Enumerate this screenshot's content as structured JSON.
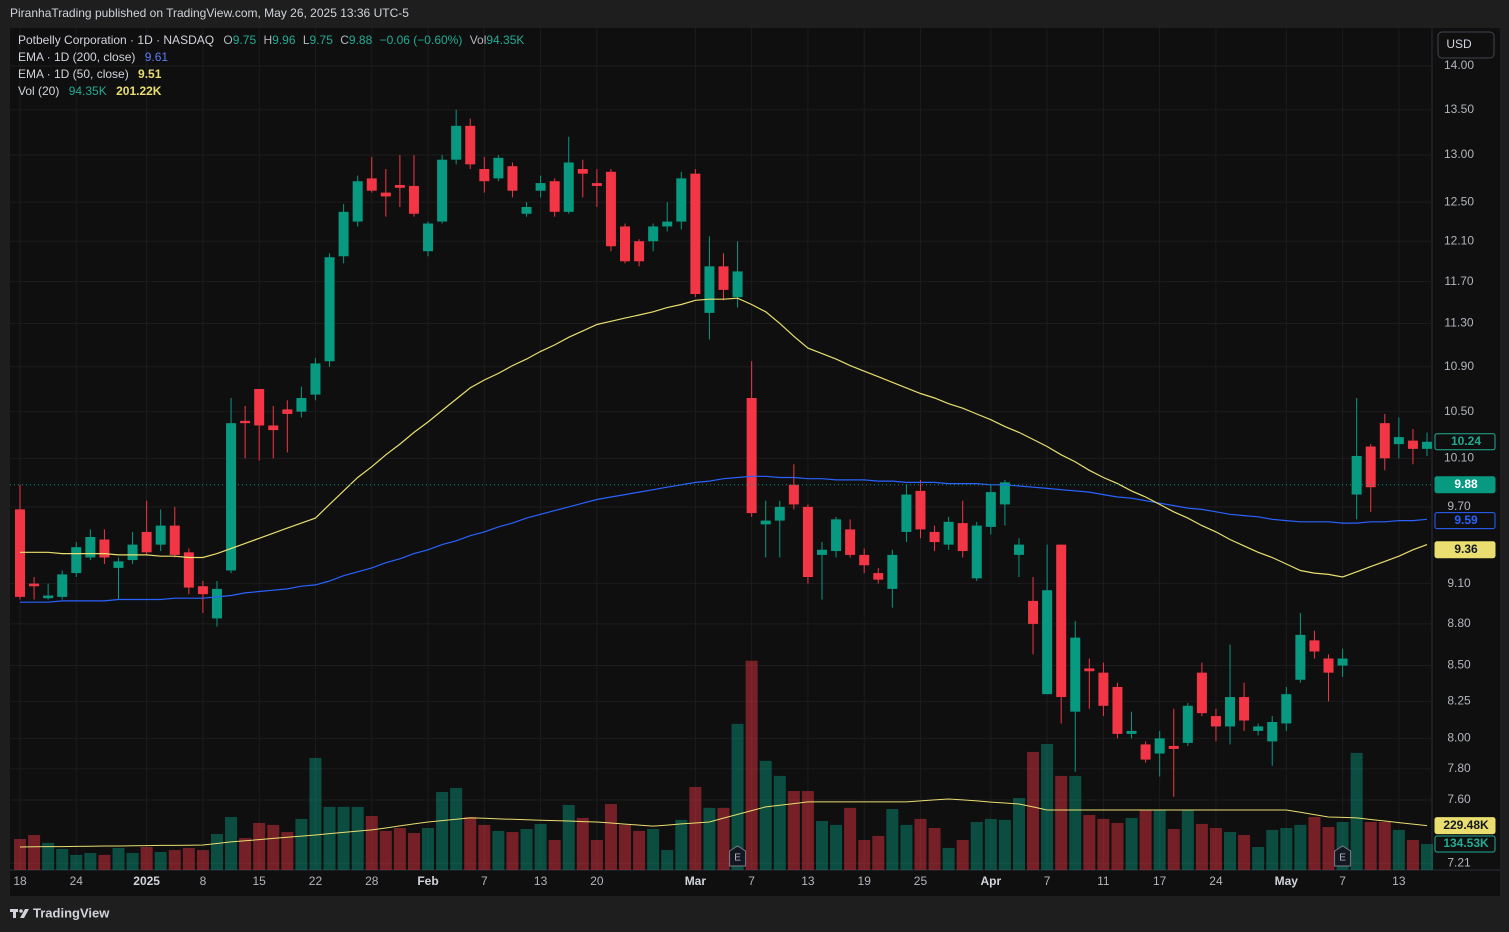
{
  "page": {
    "published": "PiranhaTrading published on TradingView.com, May 26, 2025 13:36 UTC-5",
    "brand": "TradingView",
    "currency": "USD"
  },
  "chart_data": {
    "type": "candlestick",
    "title": "Potbelly Corporation · 1D · NASDAQ",
    "ohlc_legend": [
      {
        "key": "O",
        "value": "9.75"
      },
      {
        "key": "H",
        "value": "9.96"
      },
      {
        "key": "L",
        "value": "9.75"
      },
      {
        "key": "C",
        "value": "9.88"
      }
    ],
    "change": "−0.06 (−0.60%)",
    "vol_key": "Vol",
    "vol_value": "94.35K",
    "log_scale": true,
    "grid": true,
    "up_color": "#089981",
    "down_color": "#f23645",
    "categories": [
      "18",
      null,
      null,
      null,
      "24",
      null,
      null,
      null,
      null,
      "2025",
      null,
      null,
      null,
      "8",
      null,
      null,
      null,
      "15",
      null,
      null,
      null,
      "22",
      null,
      null,
      null,
      "28",
      null,
      null,
      null,
      "Feb",
      null,
      null,
      null,
      "7",
      null,
      null,
      null,
      "13",
      null,
      null,
      null,
      "20",
      null,
      null,
      null,
      null,
      null,
      null,
      "Mar",
      null,
      null,
      null,
      "7",
      null,
      null,
      null,
      "13",
      null,
      null,
      null,
      "19",
      null,
      null,
      null,
      "25",
      null,
      null,
      null,
      null,
      "Apr",
      null,
      null,
      null,
      "7",
      null,
      null,
      null,
      "11",
      null,
      null,
      null,
      "17",
      null,
      null,
      null,
      "24",
      null,
      null,
      null,
      null,
      "May",
      null,
      null,
      null,
      "7",
      null,
      null,
      null,
      "13",
      null,
      null
    ],
    "open": [
      9.68,
      9.1,
      8.99,
      9.0,
      9.18,
      9.3,
      9.44,
      9.22,
      9.28,
      9.5,
      9.4,
      9.55,
      9.34,
      9.08,
      8.84,
      9.2,
      10.42,
      10.7,
      10.38,
      10.52,
      10.5,
      10.65,
      10.95,
      11.95,
      12.3,
      12.75,
      12.6,
      12.68,
      12.67,
      12.0,
      12.3,
      12.95,
      13.32,
      12.85,
      12.75,
      12.88,
      12.38,
      12.62,
      12.72,
      12.4,
      12.85,
      12.7,
      12.82,
      12.25,
      12.1,
      12.1,
      12.25,
      12.3,
      12.8,
      11.4,
      11.85,
      11.55,
      10.62,
      9.56,
      9.59,
      9.88,
      9.7,
      9.32,
      9.35,
      9.52,
      9.32,
      9.18,
      9.06,
      9.5,
      9.83,
      9.5,
      9.4,
      9.57,
      9.14,
      9.54,
      9.72,
      9.32,
      8.97,
      8.3,
      9.4,
      8.18,
      8.48,
      8.45,
      8.35,
      8.03,
      7.96,
      7.9,
      7.95,
      7.97,
      8.45,
      8.15,
      8.08,
      8.28,
      8.05,
      7.98,
      8.1,
      8.4,
      8.68,
      8.55,
      8.5,
      9.8,
      10.2,
      10.4,
      10.22,
      10.25,
      10.18
    ],
    "high": [
      9.88,
      9.15,
      9.1,
      9.2,
      9.42,
      9.52,
      9.52,
      9.3,
      9.5,
      9.75,
      9.68,
      9.7,
      9.37,
      9.12,
      9.12,
      10.62,
      10.55,
      10.7,
      10.55,
      10.6,
      10.72,
      10.98,
      11.98,
      12.48,
      12.78,
      12.98,
      12.85,
      13.0,
      13.0,
      12.3,
      13.0,
      13.5,
      13.4,
      12.98,
      13.0,
      12.92,
      12.5,
      12.78,
      12.75,
      13.2,
      12.95,
      12.85,
      12.85,
      12.28,
      12.12,
      12.28,
      12.5,
      12.82,
      12.85,
      12.15,
      11.98,
      12.1,
      10.95,
      9.75,
      9.75,
      10.05,
      9.72,
      9.42,
      9.62,
      9.6,
      9.37,
      9.22,
      9.36,
      9.88,
      9.92,
      9.55,
      9.62,
      9.75,
      9.58,
      9.88,
      9.92,
      9.45,
      9.15,
      9.4,
      9.4,
      8.82,
      8.55,
      8.52,
      8.38,
      8.18,
      7.98,
      8.05,
      8.2,
      8.24,
      8.52,
      8.2,
      8.65,
      8.38,
      8.1,
      8.15,
      8.35,
      8.88,
      8.75,
      8.58,
      8.62,
      10.62,
      10.22,
      10.48,
      10.45,
      10.35,
      10.32
    ],
    "low": [
      8.98,
      8.98,
      8.98,
      8.98,
      9.15,
      9.28,
      9.25,
      8.98,
      9.25,
      9.32,
      9.35,
      9.3,
      9.02,
      8.88,
      8.78,
      9.18,
      10.1,
      10.08,
      10.1,
      10.15,
      10.45,
      10.6,
      10.9,
      11.88,
      12.25,
      12.6,
      12.35,
      12.45,
      12.35,
      11.95,
      12.28,
      12.9,
      12.85,
      12.6,
      12.72,
      12.55,
      12.35,
      12.55,
      12.35,
      12.38,
      12.55,
      12.45,
      12.0,
      11.88,
      11.85,
      12.0,
      12.2,
      12.22,
      11.55,
      11.15,
      11.52,
      11.45,
      9.62,
      9.3,
      9.3,
      9.68,
      9.1,
      8.98,
      9.3,
      9.3,
      9.18,
      9.1,
      8.92,
      9.42,
      9.45,
      9.35,
      9.36,
      9.3,
      9.12,
      9.48,
      9.55,
      9.15,
      8.58,
      8.3,
      8.1,
      7.78,
      8.2,
      8.15,
      8.0,
      8.0,
      7.84,
      7.75,
      7.62,
      7.95,
      8.15,
      7.98,
      7.96,
      8.05,
      8.02,
      7.82,
      8.05,
      8.38,
      8.55,
      8.25,
      8.42,
      9.6,
      9.66,
      10.0,
      10.1,
      10.05,
      10.12
    ],
    "close": [
      9.0,
      9.08,
      9.01,
      9.17,
      9.38,
      9.46,
      9.3,
      9.27,
      9.4,
      9.34,
      9.55,
      9.32,
      9.07,
      9.02,
      9.06,
      10.4,
      10.4,
      10.38,
      10.34,
      10.48,
      10.62,
      10.93,
      11.94,
      12.4,
      12.72,
      12.62,
      12.56,
      12.65,
      12.38,
      12.28,
      12.95,
      13.32,
      12.9,
      12.72,
      12.97,
      12.62,
      12.45,
      12.7,
      12.4,
      12.92,
      12.8,
      12.67,
      12.05,
      11.9,
      11.9,
      12.25,
      12.3,
      12.75,
      11.58,
      11.85,
      11.62,
      11.8,
      9.65,
      9.59,
      9.7,
      9.72,
      9.15,
      9.36,
      9.6,
      9.32,
      9.24,
      9.13,
      9.32,
      9.8,
      9.52,
      9.42,
      9.58,
      9.35,
      9.55,
      9.82,
      9.9,
      9.4,
      8.8,
      9.05,
      8.28,
      8.7,
      8.46,
      8.22,
      8.03,
      8.05,
      7.86,
      8.0,
      7.93,
      8.22,
      8.17,
      8.08,
      8.28,
      8.12,
      8.08,
      8.11,
      8.3,
      8.72,
      8.6,
      8.45,
      8.55,
      10.12,
      9.86,
      10.1,
      10.28,
      10.18,
      10.24
    ],
    "lines": [
      {
        "name": "EMA · 1D (200, close)",
        "legend_value": "9.61",
        "color": "#2962ff",
        "values": [
          8.96,
          8.96,
          8.96,
          8.97,
          8.97,
          8.97,
          8.97,
          8.98,
          8.98,
          8.98,
          8.98,
          8.99,
          8.99,
          8.99,
          9.0,
          9.01,
          9.03,
          9.04,
          9.05,
          9.06,
          9.08,
          9.09,
          9.12,
          9.16,
          9.19,
          9.22,
          9.26,
          9.29,
          9.33,
          9.36,
          9.4,
          9.43,
          9.47,
          9.5,
          9.54,
          9.57,
          9.61,
          9.64,
          9.67,
          9.7,
          9.73,
          9.76,
          9.78,
          9.8,
          9.82,
          9.84,
          9.86,
          9.88,
          9.9,
          9.91,
          9.93,
          9.94,
          9.95,
          9.95,
          9.94,
          9.94,
          9.93,
          9.93,
          9.92,
          9.92,
          9.92,
          9.91,
          9.91,
          9.9,
          9.9,
          9.9,
          9.89,
          9.89,
          9.89,
          9.88,
          9.88,
          9.87,
          9.86,
          9.85,
          9.84,
          9.83,
          9.82,
          9.8,
          9.78,
          9.77,
          9.75,
          9.73,
          9.71,
          9.69,
          9.68,
          9.66,
          9.64,
          9.63,
          9.62,
          9.6,
          9.59,
          9.58,
          9.58,
          9.58,
          9.57,
          9.57,
          9.58,
          9.58,
          9.59,
          9.59,
          9.6
        ]
      },
      {
        "name": "EMA · 1D (50, close)",
        "legend_value": "9.51",
        "color": "#e9de6f",
        "values": [
          9.34,
          9.34,
          9.34,
          9.33,
          9.33,
          9.33,
          9.33,
          9.32,
          9.32,
          9.32,
          9.31,
          9.31,
          9.3,
          9.3,
          9.33,
          9.37,
          9.41,
          9.45,
          9.49,
          9.53,
          9.57,
          9.61,
          9.72,
          9.83,
          9.94,
          10.03,
          10.13,
          10.22,
          10.32,
          10.41,
          10.51,
          10.61,
          10.71,
          10.78,
          10.84,
          10.91,
          10.97,
          11.04,
          11.1,
          11.17,
          11.23,
          11.29,
          11.32,
          11.35,
          11.38,
          11.41,
          11.45,
          11.48,
          11.52,
          11.53,
          11.53,
          11.54,
          11.48,
          11.41,
          11.3,
          11.18,
          11.07,
          11.02,
          10.97,
          10.91,
          10.86,
          10.81,
          10.76,
          10.71,
          10.66,
          10.62,
          10.57,
          10.53,
          10.48,
          10.43,
          10.37,
          10.32,
          10.26,
          10.2,
          10.13,
          10.07,
          10.0,
          9.94,
          9.89,
          9.83,
          9.78,
          9.72,
          9.66,
          9.61,
          9.55,
          9.5,
          9.44,
          9.39,
          9.34,
          9.3,
          9.25,
          9.2,
          9.18,
          9.17,
          9.15,
          9.19,
          9.23,
          9.27,
          9.31,
          9.36,
          9.4
        ]
      }
    ],
    "volume": {
      "name": "Vol (20)",
      "legend_values": [
        "94.35K",
        "201.22K"
      ],
      "axis": "y2",
      "ma_color": "#e9de6f",
      "values": [
        160,
        181,
        140,
        109,
        78,
        88,
        78,
        114,
        88,
        119,
        93,
        103,
        114,
        103,
        186,
        274,
        165,
        243,
        233,
        196,
        264,
        579,
        326,
        326,
        326,
        279,
        202,
        217,
        191,
        217,
        403,
        424,
        274,
        233,
        202,
        196,
        212,
        238,
        155,
        336,
        269,
        155,
        341,
        233,
        202,
        212,
        103,
        259,
        429,
        321,
        321,
        755,
        1081,
        564,
        486,
        408,
        408,
        253,
        233,
        321,
        155,
        176,
        315,
        233,
        264,
        217,
        114,
        155,
        248,
        264,
        259,
        372,
        610,
        651,
        486,
        486,
        284,
        264,
        243,
        269,
        310,
        310,
        212,
        310,
        238,
        217,
        196,
        181,
        119,
        207,
        217,
        233,
        274,
        222,
        248,
        605,
        248,
        248,
        207,
        155,
        134.53
      ],
      "ma_values": [
        119,
        120,
        121,
        121,
        122,
        123,
        124,
        124,
        125,
        126,
        127,
        127,
        128,
        129,
        137,
        145,
        151,
        157,
        163,
        169,
        175,
        181,
        188,
        194,
        201,
        207,
        217,
        228,
        238,
        248,
        255,
        262,
        269,
        267,
        264,
        262,
        260,
        257,
        255,
        253,
        250,
        248,
        243,
        237,
        232,
        227,
        232,
        238,
        243,
        248,
        268,
        287,
        307,
        326,
        335,
        343,
        352,
        352,
        352,
        352,
        352,
        352,
        352,
        352,
        357,
        362,
        367,
        362,
        357,
        351,
        346,
        341,
        326,
        310,
        310,
        310,
        310,
        310,
        310,
        310,
        310,
        310,
        310,
        310,
        310,
        310,
        310,
        310,
        310,
        310,
        310,
        298,
        286,
        274,
        272,
        269,
        261,
        253,
        245,
        237,
        229.48
      ]
    },
    "ylim": [
      7.17,
      14.45
    ],
    "yticks": [
      {
        "value": 14,
        "label": "14.00"
      },
      {
        "value": 13.5,
        "label": "13.50"
      },
      {
        "value": 13,
        "label": "13.00"
      },
      {
        "value": 12.5,
        "label": "12.50"
      },
      {
        "value": 12.1,
        "label": "12.10"
      },
      {
        "value": 11.7,
        "label": "11.70"
      },
      {
        "value": 11.3,
        "label": "11.30"
      },
      {
        "value": 10.9,
        "label": "10.90"
      },
      {
        "value": 10.5,
        "label": "10.50"
      },
      {
        "value": 10.1,
        "label": "10.10"
      },
      {
        "value": 9.7,
        "label": "9.70"
      },
      {
        "value": 9.1,
        "label": "9.10"
      },
      {
        "value": 8.8,
        "label": "8.80"
      },
      {
        "value": 8.5,
        "label": "8.50"
      },
      {
        "value": 8.25,
        "label": "8.25"
      },
      {
        "value": 8,
        "label": "8.00"
      },
      {
        "value": 7.8,
        "label": "7.80"
      },
      {
        "value": 7.6,
        "label": "7.60"
      },
      {
        "value": 7.21,
        "label": "7.21"
      }
    ],
    "y2lim": [
      0,
      4350
    ],
    "price_tags": [
      {
        "value": 10.24,
        "color": "#22ab94",
        "filled": false
      },
      {
        "value": 9.88,
        "color": "#089981",
        "filled": true,
        "dotted_line": true
      },
      {
        "value": 9.59,
        "color": "#2962ff",
        "filled": false
      },
      {
        "value": 9.36,
        "color": "#e9de6f",
        "filled": true
      }
    ],
    "volume_tags": [
      {
        "value": 229.48,
        "label": "229.48K",
        "color": "#e9de6f",
        "filled": true
      },
      {
        "value": 134.53,
        "label": "134.53K",
        "color": "#22ab94",
        "filled": false
      }
    ],
    "earnings_label": "E",
    "earnings_index": [
      51,
      94
    ]
  }
}
